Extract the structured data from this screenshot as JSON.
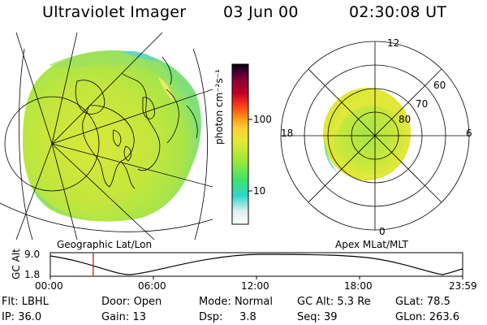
{
  "header": {
    "instrument": "Ultraviolet Imager",
    "date": "03 Jun 00",
    "time": "02:30:08 UT"
  },
  "colorbar": {
    "label": "photon cm⁻²s⁻¹",
    "ticks": [
      "100",
      "10"
    ],
    "colors": [
      "#ffffff",
      "#dfeff0",
      "#2ed6cc",
      "#3fe36a",
      "#9fe838",
      "#e6e832",
      "#ffcf33",
      "#ff9a1a",
      "#ff3b1a",
      "#c00028",
      "#8a0033",
      "#3a0030",
      "#000000"
    ]
  },
  "polar_plot": {
    "ring_labels": [
      "60",
      "70",
      "80"
    ],
    "clock_labels": {
      "top": "12",
      "left": "18",
      "right": "6",
      "bottom": "0"
    }
  },
  "panels": {
    "left_caption": "Geographic Lat/Lon",
    "right_caption": "Apex MLat/MLT"
  },
  "altitude_plot": {
    "ylabel": "GC Alt",
    "yticks": [
      "9.0",
      "1.8"
    ],
    "xticks": [
      "00:00",
      "06:00",
      "12:00",
      "18:00",
      "23:59"
    ],
    "current_time_fraction": 0.104,
    "curve_color": "#000000",
    "marker_color": "#d02020"
  },
  "info": {
    "row1": [
      {
        "label": "Flt:",
        "value": "LBHL"
      },
      {
        "label": "Door:",
        "value": "Open"
      },
      {
        "label": "Mode:",
        "value": "Normal"
      },
      {
        "label": "GC Alt:",
        "value": "5.3 Re"
      },
      {
        "label": "GLat:",
        "value": "78.5"
      }
    ],
    "row2": [
      {
        "label": "IP:",
        "value": "36.0"
      },
      {
        "label": "Gain:",
        "value": "13"
      },
      {
        "label": "Dsp:",
        "value": "3.8"
      },
      {
        "label": "Seq:",
        "value": "39"
      },
      {
        "label": "GLon:",
        "value": "263.6"
      }
    ]
  }
}
